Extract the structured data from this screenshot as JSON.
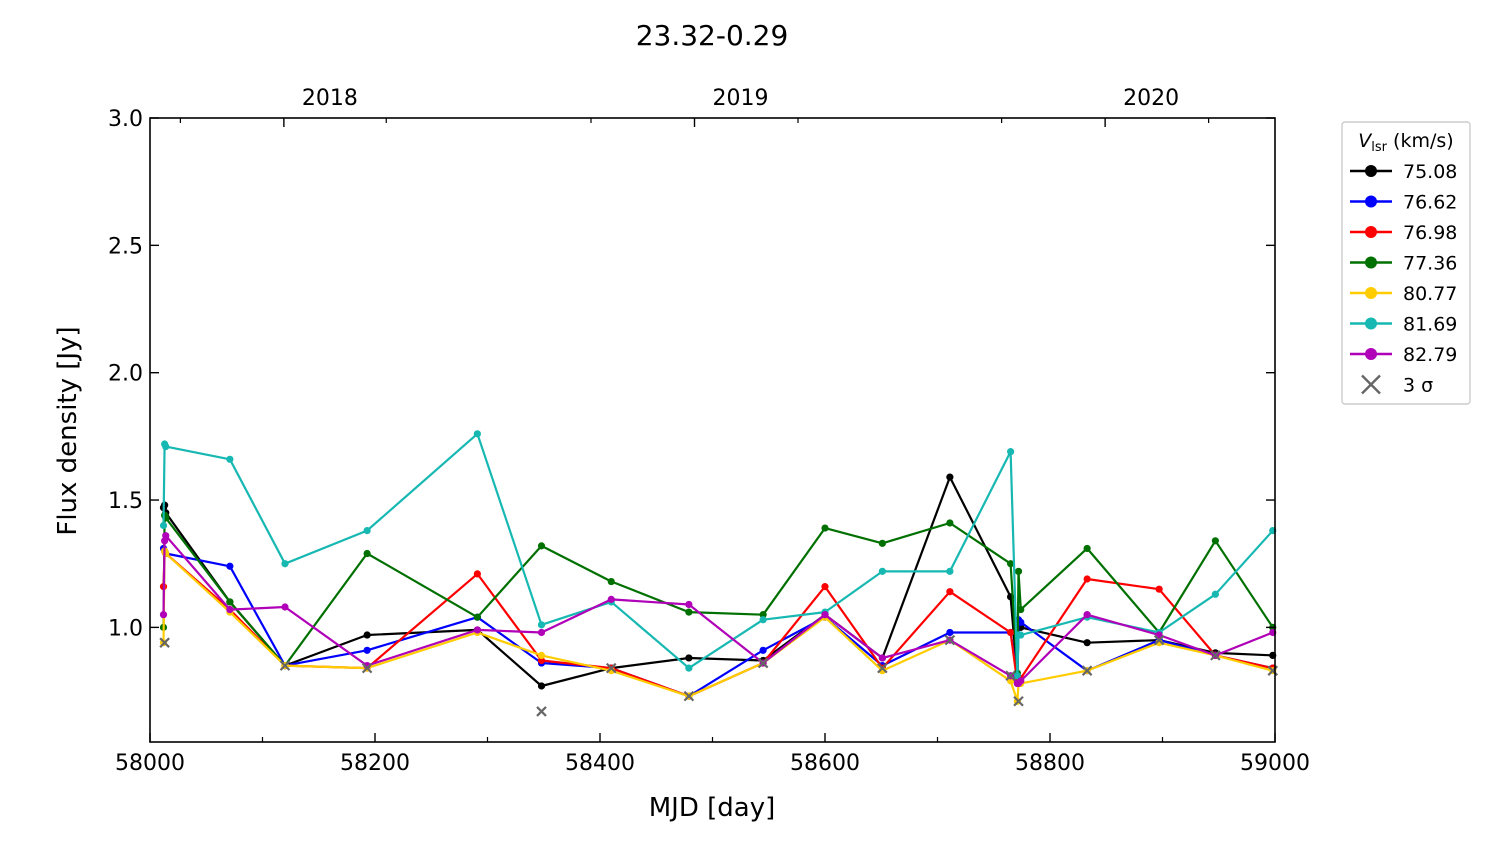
{
  "chart_data": {
    "type": "line",
    "title": "23.32-0.29",
    "xlabel": "MJD [day]",
    "ylabel": "Flux density [Jy]",
    "xlim": [
      58000,
      59000
    ],
    "ylim": [
      0.55,
      3.0
    ],
    "x_ticks": [
      58000,
      58200,
      58400,
      58600,
      58800,
      59000
    ],
    "x_tick_labels": [
      "58000",
      "58200",
      "58400",
      "58600",
      "58800",
      "59000"
    ],
    "y_ticks": [
      1.0,
      1.5,
      2.0,
      2.5,
      3.0
    ],
    "y_tick_labels": [
      "1.0",
      "1.5",
      "2.0",
      "2.5",
      "3.0"
    ],
    "top_axis": {
      "ticks": [
        {
          "x": 58119,
          "label": "2018"
        },
        {
          "x": 58484,
          "label": "2019"
        },
        {
          "x": 58849,
          "label": "2020"
        }
      ]
    },
    "grid": false,
    "legend": {
      "placement": "outside-right",
      "title_symbol": "V",
      "title_subscript": "lsr",
      "title_rest": " (km/s)",
      "sigma_label": "3 σ",
      "sigma_color": "#666666"
    },
    "x": [
      58012,
      58013,
      58014,
      58071,
      58120,
      58193,
      58291,
      58348,
      58410,
      58479,
      58545,
      58600,
      58651,
      58711,
      58765,
      58771,
      58772,
      58774,
      58833,
      58897,
      58947,
      58998
    ],
    "series": [
      {
        "name": "75.08",
        "color": "#000000",
        "values": [
          1.47,
          1.48,
          1.45,
          1.1,
          0.85,
          0.97,
          0.99,
          0.77,
          0.84,
          0.88,
          0.87,
          1.05,
          0.88,
          1.59,
          1.12,
          0.8,
          1.0,
          1.0,
          0.94,
          0.95,
          0.9,
          0.89
        ]
      },
      {
        "name": "76.62",
        "color": "#0000ff",
        "values": [
          1.31,
          1.3,
          1.29,
          1.24,
          0.85,
          0.91,
          1.04,
          0.86,
          0.84,
          0.73,
          0.91,
          1.04,
          0.85,
          0.98,
          0.98,
          0.81,
          1.03,
          1.02,
          0.83,
          0.95,
          0.89,
          0.84
        ]
      },
      {
        "name": "76.98",
        "color": "#ff0000",
        "values": [
          1.16,
          1.3,
          1.29,
          1.07,
          0.85,
          0.84,
          1.21,
          0.87,
          0.84,
          0.73,
          0.86,
          1.16,
          0.84,
          1.14,
          0.98,
          0.78,
          0.8,
          0.8,
          1.19,
          1.15,
          0.89,
          0.84
        ]
      },
      {
        "name": "77.36",
        "color": "#007000",
        "values": [
          1.0,
          1.44,
          1.43,
          1.1,
          0.85,
          1.29,
          1.04,
          1.32,
          1.18,
          1.06,
          1.05,
          1.39,
          1.33,
          1.41,
          1.25,
          0.82,
          1.22,
          1.07,
          1.31,
          0.98,
          1.34,
          1.0
        ]
      },
      {
        "name": "80.77",
        "color": "#ffcc00",
        "values": [
          0.94,
          1.3,
          1.29,
          1.06,
          0.85,
          0.84,
          0.98,
          0.89,
          0.83,
          0.73,
          0.86,
          1.04,
          0.83,
          0.95,
          0.79,
          0.71,
          0.78,
          0.78,
          0.83,
          0.94,
          0.89,
          0.83
        ]
      },
      {
        "name": "81.69",
        "color": "#17b8b2",
        "values": [
          1.4,
          1.72,
          1.71,
          1.66,
          1.25,
          1.38,
          1.76,
          1.01,
          1.1,
          0.84,
          1.03,
          1.06,
          1.22,
          1.22,
          1.69,
          0.81,
          0.97,
          0.97,
          1.04,
          0.98,
          1.13,
          1.38
        ]
      },
      {
        "name": "82.79",
        "color": "#b000b8",
        "values": [
          1.05,
          1.34,
          1.36,
          1.07,
          1.08,
          0.85,
          0.99,
          0.98,
          1.11,
          1.09,
          0.86,
          1.05,
          0.88,
          0.95,
          0.81,
          0.78,
          0.78,
          0.79,
          1.05,
          0.97,
          0.89,
          0.98
        ]
      }
    ],
    "three_sigma": [
      {
        "x": 58013,
        "y": 0.94
      },
      {
        "x": 58120,
        "y": 0.85
      },
      {
        "x": 58193,
        "y": 0.84
      },
      {
        "x": 58348,
        "y": 0.67
      },
      {
        "x": 58410,
        "y": 0.84
      },
      {
        "x": 58479,
        "y": 0.73
      },
      {
        "x": 58545,
        "y": 0.86
      },
      {
        "x": 58651,
        "y": 0.84
      },
      {
        "x": 58711,
        "y": 0.95
      },
      {
        "x": 58765,
        "y": 0.81
      },
      {
        "x": 58772,
        "y": 0.71
      },
      {
        "x": 58833,
        "y": 0.83
      },
      {
        "x": 58897,
        "y": 0.95
      },
      {
        "x": 58947,
        "y": 0.89
      },
      {
        "x": 58998,
        "y": 0.83
      }
    ]
  }
}
